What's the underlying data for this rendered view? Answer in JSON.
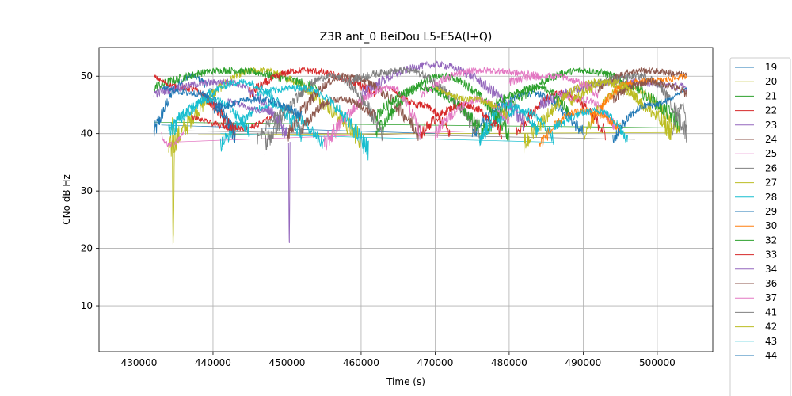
{
  "chart_data": {
    "type": "line",
    "title": "Z3R ant_0 BeiDou L5-E5A(I+Q)",
    "xlabel": "Time (s)",
    "ylabel": "CNo dB Hz",
    "xlim": [
      424600,
      507500
    ],
    "ylim": [
      2,
      55
    ],
    "xticks": [
      430000,
      440000,
      450000,
      460000,
      470000,
      480000,
      490000,
      500000
    ],
    "yticks": [
      10,
      20,
      30,
      40,
      50
    ],
    "grid": true,
    "legend_position": "right",
    "series": [
      {
        "name": "19",
        "color": "#1f77b4",
        "arcs": [
          [
            432000,
            40,
            437000,
            50,
            443000,
            39
          ],
          [
            475000,
            40,
            483000,
            47,
            490000,
            40
          ]
        ]
      },
      {
        "name": "20",
        "color": "#bcbd22",
        "arcs": [
          [
            434000,
            37,
            446000,
            51,
            460000,
            39
          ],
          [
            490000,
            40,
            496000,
            48,
            503000,
            40
          ]
        ]
      },
      {
        "name": "21",
        "color": "#2ca02c",
        "arcs": [
          [
            432000,
            48,
            442000,
            51,
            454000,
            48
          ],
          [
            462000,
            40,
            471000,
            50,
            480000,
            40
          ],
          [
            476000,
            40,
            490000,
            51,
            503000,
            42
          ]
        ]
      },
      {
        "name": "22",
        "color": "#d62728",
        "arcs": [
          [
            432000,
            50,
            436000,
            48,
            443000,
            40
          ],
          [
            445000,
            47,
            452000,
            51,
            462000,
            47
          ],
          [
            464000,
            48,
            468000,
            45,
            472000,
            40
          ],
          [
            481000,
            40,
            487000,
            47,
            493000,
            40
          ]
        ]
      },
      {
        "name": "23",
        "color": "#9467bd",
        "arcs": [
          [
            432000,
            47,
            442000,
            49,
            450000,
            40
          ],
          [
            460000,
            47,
            470000,
            52,
            482000,
            42
          ],
          [
            484000,
            45,
            495000,
            49,
            504000,
            48
          ]
        ]
      },
      {
        "name": "24",
        "color": "#8c564b",
        "arcs": [
          [
            450000,
            40,
            458000,
            50,
            468000,
            40
          ],
          [
            492000,
            48,
            498000,
            51,
            504000,
            50
          ]
        ]
      },
      {
        "name": "25",
        "color": "#e377c2",
        "arcs": [
          [
            433000,
            40,
            434000,
            38,
            436000,
            40
          ],
          [
            455000,
            38,
            464000,
            48,
            468000,
            40
          ],
          [
            468000,
            47,
            476000,
            51,
            484000,
            50
          ],
          [
            486000,
            47,
            490000,
            46,
            495000,
            40
          ]
        ]
      },
      {
        "name": "26",
        "color": "#7f7f7f",
        "arcs": [
          [
            447000,
            38,
            456000,
            50,
            463000,
            40
          ],
          [
            458000,
            49,
            466000,
            51,
            476000,
            40
          ],
          [
            490000,
            48,
            498000,
            50,
            504000,
            40
          ]
        ]
      },
      {
        "name": "27",
        "color": "#bcbd22",
        "arcs": [
          [
            434500,
            42,
            434600,
            21,
            434800,
            42
          ],
          [
            482000,
            38,
            492000,
            49,
            502000,
            40
          ]
        ]
      },
      {
        "name": "28",
        "color": "#17becf",
        "arcs": [
          [
            434000,
            40,
            444000,
            49,
            452000,
            40
          ],
          [
            441000,
            38,
            448000,
            45,
            455000,
            38
          ],
          [
            476000,
            39,
            482000,
            44,
            486000,
            39
          ]
        ]
      },
      {
        "name": "29",
        "color": "#1f77b4",
        "arcs": [
          [
            433000,
            48,
            438000,
            47,
            443000,
            40
          ],
          [
            494000,
            39,
            499000,
            45,
            504000,
            48
          ]
        ]
      },
      {
        "name": "30",
        "color": "#ff7f0e",
        "arcs": [
          [
            484000,
            38,
            490000,
            44,
            495000,
            41
          ],
          [
            491000,
            42,
            497000,
            49,
            504000,
            50
          ]
        ]
      },
      {
        "name": "32",
        "color": "#2ca02c",
        "arcs": [
          [
            462000,
            43,
            468000,
            48,
            476000,
            41
          ],
          [
            478000,
            45,
            484000,
            48,
            488000,
            44
          ]
        ]
      },
      {
        "name": "33",
        "color": "#d62728",
        "arcs": [
          [
            437000,
            43,
            444000,
            41,
            448000,
            43
          ],
          [
            468000,
            40,
            474000,
            45,
            479000,
            40
          ]
        ]
      },
      {
        "name": "34",
        "color": "#9467bd",
        "arcs": [
          [
            442000,
            46,
            447000,
            44,
            450000,
            40
          ],
          [
            450200,
            40,
            450300,
            21,
            450400,
            40
          ]
        ]
      },
      {
        "name": "36",
        "color": "#8c564b",
        "arcs": [
          [
            452000,
            41,
            457000,
            46,
            462000,
            43
          ],
          [
            494000,
            46,
            499000,
            49,
            504000,
            47
          ]
        ]
      },
      {
        "name": "37",
        "color": "#e377c2",
        "arcs": [
          [
            470000,
            40,
            476000,
            46,
            480000,
            42
          ],
          [
            480000,
            49,
            486000,
            50,
            492000,
            47
          ]
        ]
      },
      {
        "name": "41",
        "color": "#7f7f7f",
        "arcs": [
          [
            446000,
            39,
            450000,
            44,
            452000,
            40
          ],
          [
            502000,
            40,
            503500,
            45,
            504000,
            40
          ]
        ]
      },
      {
        "name": "42",
        "color": "#bcbd22",
        "arcs": [
          [
            470000,
            48,
            475000,
            46,
            480000,
            43
          ],
          [
            488000,
            45,
            494000,
            49,
            498000,
            45
          ]
        ]
      },
      {
        "name": "43",
        "color": "#17becf",
        "arcs": [
          [
            434000,
            41,
            440000,
            46,
            445000,
            40
          ],
          [
            446000,
            47,
            452000,
            48,
            461000,
            37
          ],
          [
            476000,
            39,
            480000,
            45,
            484000,
            40
          ],
          [
            486000,
            41,
            492000,
            44,
            496000,
            39
          ]
        ]
      },
      {
        "name": "44",
        "color": "#1f77b4",
        "arcs": [
          [
            440000,
            44,
            446000,
            46,
            452000,
            43
          ]
        ]
      }
    ],
    "connectors": [
      [
        [
          432000,
          42
        ],
        [
          503000,
          41
        ],
        "#2ca02c"
      ],
      [
        [
          434000,
          38.5
        ],
        [
          476000,
          40.5
        ],
        "#e377c2"
      ],
      [
        [
          436000,
          40.5
        ],
        [
          497000,
          39
        ],
        "#7f7f7f"
      ],
      [
        [
          438000,
          39.8
        ],
        [
          502000,
          40.2
        ],
        "#bcbd22"
      ],
      [
        [
          441000,
          40
        ],
        [
          486000,
          38.5
        ],
        "#17becf"
      ],
      [
        [
          433000,
          41.5
        ],
        [
          470000,
          40
        ],
        "#1f77b4"
      ]
    ]
  }
}
